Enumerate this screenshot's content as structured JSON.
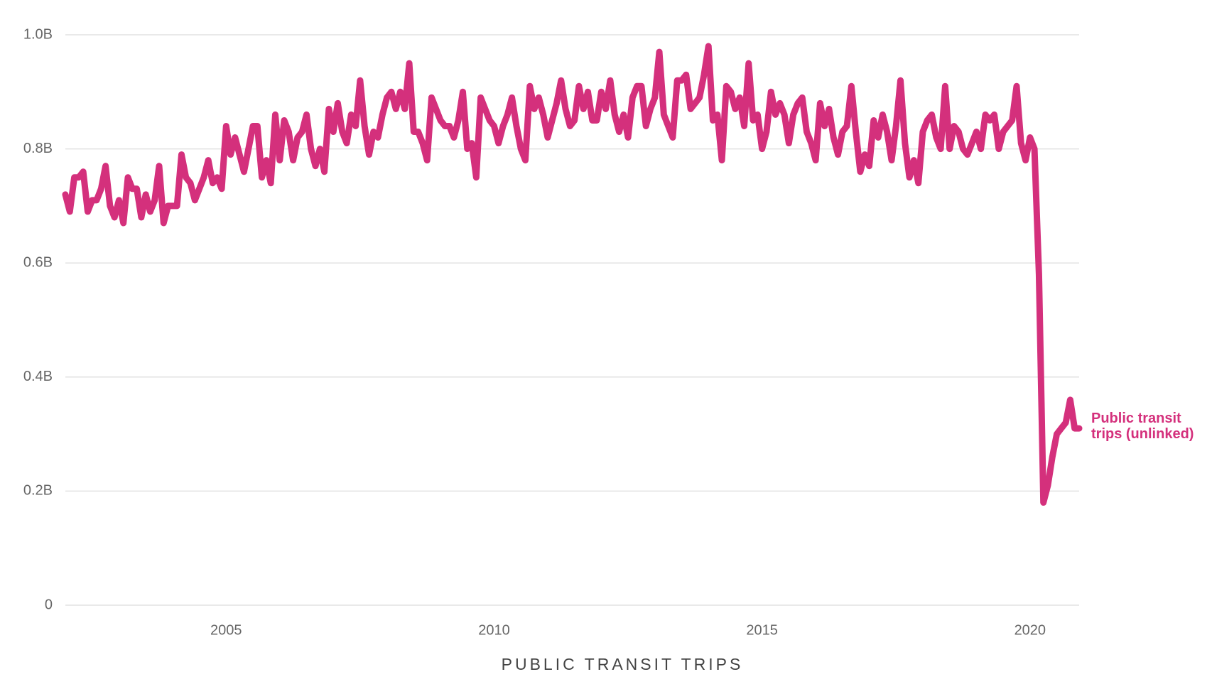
{
  "chart_data": {
    "type": "line",
    "xlabel": "PUBLIC TRANSIT TRIPS",
    "x": [
      2002,
      2002.083,
      2002.167,
      2002.25,
      2002.333,
      2002.417,
      2002.5,
      2002.583,
      2002.667,
      2002.75,
      2002.833,
      2002.917,
      2003,
      2003.083,
      2003.167,
      2003.25,
      2003.333,
      2003.417,
      2003.5,
      2003.583,
      2003.667,
      2003.75,
      2003.833,
      2003.917,
      2004,
      2004.083,
      2004.167,
      2004.25,
      2004.333,
      2004.417,
      2004.5,
      2004.583,
      2004.667,
      2004.75,
      2004.833,
      2004.917,
      2005,
      2005.083,
      2005.167,
      2005.25,
      2005.333,
      2005.417,
      2005.5,
      2005.583,
      2005.667,
      2005.75,
      2005.833,
      2005.917,
      2006,
      2006.083,
      2006.167,
      2006.25,
      2006.333,
      2006.417,
      2006.5,
      2006.583,
      2006.667,
      2006.75,
      2006.833,
      2006.917,
      2007,
      2007.083,
      2007.167,
      2007.25,
      2007.333,
      2007.417,
      2007.5,
      2007.583,
      2007.667,
      2007.75,
      2007.833,
      2007.917,
      2008,
      2008.083,
      2008.167,
      2008.25,
      2008.333,
      2008.417,
      2008.5,
      2008.583,
      2008.667,
      2008.75,
      2008.833,
      2008.917,
      2009,
      2009.083,
      2009.167,
      2009.25,
      2009.333,
      2009.417,
      2009.5,
      2009.583,
      2009.667,
      2009.75,
      2009.833,
      2009.917,
      2010,
      2010.083,
      2010.167,
      2010.25,
      2010.333,
      2010.417,
      2010.5,
      2010.583,
      2010.667,
      2010.75,
      2010.833,
      2010.917,
      2011,
      2011.083,
      2011.167,
      2011.25,
      2011.333,
      2011.417,
      2011.5,
      2011.583,
      2011.667,
      2011.75,
      2011.833,
      2011.917,
      2012,
      2012.083,
      2012.167,
      2012.25,
      2012.333,
      2012.417,
      2012.5,
      2012.583,
      2012.667,
      2012.75,
      2012.833,
      2012.917,
      2013,
      2013.083,
      2013.167,
      2013.25,
      2013.333,
      2013.417,
      2013.5,
      2013.583,
      2013.667,
      2013.75,
      2013.833,
      2013.917,
      2014,
      2014.083,
      2014.167,
      2014.25,
      2014.333,
      2014.417,
      2014.5,
      2014.583,
      2014.667,
      2014.75,
      2014.833,
      2014.917,
      2015,
      2015.083,
      2015.167,
      2015.25,
      2015.333,
      2015.417,
      2015.5,
      2015.583,
      2015.667,
      2015.75,
      2015.833,
      2015.917,
      2016,
      2016.083,
      2016.167,
      2016.25,
      2016.333,
      2016.417,
      2016.5,
      2016.583,
      2016.667,
      2016.75,
      2016.833,
      2016.917,
      2017,
      2017.083,
      2017.167,
      2017.25,
      2017.333,
      2017.417,
      2017.5,
      2017.583,
      2017.667,
      2017.75,
      2017.833,
      2017.917,
      2018,
      2018.083,
      2018.167,
      2018.25,
      2018.333,
      2018.417,
      2018.5,
      2018.583,
      2018.667,
      2018.75,
      2018.833,
      2018.917,
      2019,
      2019.083,
      2019.167,
      2019.25,
      2019.333,
      2019.417,
      2019.5,
      2019.583,
      2019.667,
      2019.75,
      2019.833,
      2019.917,
      2020,
      2020.083,
      2020.167,
      2020.25,
      2020.333,
      2020.417,
      2020.5,
      2020.583,
      2020.667,
      2020.75,
      2020.833,
      2020.917
    ],
    "series": [
      {
        "name": "Public transit trips (unlinked)",
        "color": "#d4307c",
        "values": [
          0.72,
          0.69,
          0.75,
          0.75,
          0.76,
          0.69,
          0.71,
          0.71,
          0.73,
          0.77,
          0.7,
          0.68,
          0.71,
          0.67,
          0.75,
          0.73,
          0.73,
          0.68,
          0.72,
          0.69,
          0.71,
          0.77,
          0.67,
          0.7,
          0.7,
          0.7,
          0.79,
          0.75,
          0.74,
          0.71,
          0.73,
          0.75,
          0.78,
          0.74,
          0.75,
          0.73,
          0.84,
          0.79,
          0.82,
          0.79,
          0.76,
          0.8,
          0.84,
          0.84,
          0.75,
          0.78,
          0.74,
          0.86,
          0.78,
          0.85,
          0.83,
          0.78,
          0.82,
          0.83,
          0.86,
          0.8,
          0.77,
          0.8,
          0.76,
          0.87,
          0.83,
          0.88,
          0.83,
          0.81,
          0.86,
          0.84,
          0.92,
          0.84,
          0.79,
          0.83,
          0.82,
          0.86,
          0.89,
          0.9,
          0.87,
          0.9,
          0.87,
          0.95,
          0.83,
          0.83,
          0.81,
          0.78,
          0.89,
          0.87,
          0.85,
          0.84,
          0.84,
          0.82,
          0.85,
          0.9,
          0.8,
          0.81,
          0.75,
          0.89,
          0.87,
          0.85,
          0.84,
          0.81,
          0.84,
          0.86,
          0.89,
          0.84,
          0.8,
          0.78,
          0.91,
          0.87,
          0.89,
          0.86,
          0.82,
          0.85,
          0.88,
          0.92,
          0.87,
          0.84,
          0.85,
          0.91,
          0.87,
          0.9,
          0.85,
          0.85,
          0.9,
          0.87,
          0.92,
          0.86,
          0.83,
          0.86,
          0.82,
          0.89,
          0.91,
          0.91,
          0.84,
          0.87,
          0.89,
          0.97,
          0.86,
          0.84,
          0.82,
          0.92,
          0.92,
          0.93,
          0.87,
          0.88,
          0.89,
          0.93,
          0.98,
          0.85,
          0.86,
          0.78,
          0.91,
          0.9,
          0.87,
          0.89,
          0.84,
          0.95,
          0.85,
          0.86,
          0.8,
          0.83,
          0.9,
          0.86,
          0.88,
          0.86,
          0.81,
          0.86,
          0.88,
          0.89,
          0.83,
          0.81,
          0.78,
          0.88,
          0.84,
          0.87,
          0.82,
          0.79,
          0.83,
          0.84,
          0.91,
          0.83,
          0.76,
          0.79,
          0.77,
          0.85,
          0.82,
          0.86,
          0.83,
          0.78,
          0.84,
          0.92,
          0.81,
          0.75,
          0.78,
          0.74,
          0.83,
          0.85,
          0.86,
          0.82,
          0.8,
          0.91,
          0.8,
          0.84,
          0.83,
          0.8,
          0.79,
          0.81,
          0.83,
          0.8,
          0.86,
          0.85,
          0.86,
          0.8,
          0.83,
          0.84,
          0.85,
          0.91,
          0.81,
          0.78,
          0.82,
          0.8,
          0.58,
          0.18,
          0.21,
          0.26,
          0.3,
          0.31,
          0.32,
          0.36,
          0.31,
          0.31
        ]
      }
    ],
    "xlim": [
      2002,
      2020.917
    ],
    "xticks": [
      2005,
      2010,
      2015,
      2020
    ],
    "ylim": [
      0,
      1.0
    ],
    "yticks": [
      0,
      {
        "value": 0.2,
        "label": "0.2B"
      },
      {
        "value": 0.4,
        "label": "0.4B"
      },
      {
        "value": 0.6,
        "label": "0.6B"
      },
      {
        "value": 0.8,
        "label": "0.8B"
      },
      {
        "value": 1.0,
        "label": "1.0B"
      }
    ],
    "grid": true
  }
}
